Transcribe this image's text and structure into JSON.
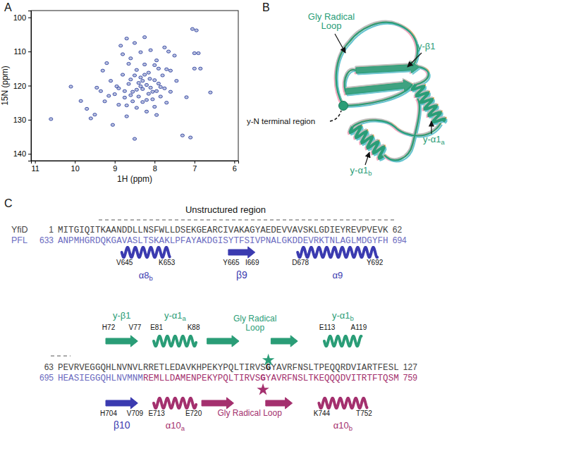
{
  "panel_labels": [
    "A",
    "B",
    "C"
  ],
  "chart_data": {
    "type": "scatter",
    "x_label": "1H (ppm)",
    "y_label": "15N (ppm)",
    "color": "#3d4fa6",
    "marker": "circle",
    "xlim": [
      11.1,
      5.9
    ],
    "xticks": [
      11,
      10,
      9,
      8,
      7,
      6
    ],
    "ylim": [
      98,
      142
    ],
    "yticks": [
      100,
      110,
      120,
      130,
      140
    ],
    "x": [
      10.6,
      10.1,
      9.85,
      9.7,
      9.6,
      9.5,
      9.45,
      9.35,
      9.3,
      9.25,
      9.2,
      9.1,
      9.05,
      9.0,
      8.95,
      8.9,
      8.85,
      8.8,
      8.75,
      8.7,
      8.7,
      8.65,
      8.6,
      8.55,
      8.5,
      8.5,
      8.45,
      8.45,
      8.4,
      8.4,
      8.35,
      8.35,
      8.3,
      8.3,
      8.25,
      8.25,
      8.2,
      8.2,
      8.15,
      8.15,
      8.1,
      8.1,
      8.05,
      8.0,
      8.0,
      7.95,
      7.95,
      7.9,
      7.9,
      7.85,
      7.8,
      7.75,
      7.75,
      7.7,
      7.7,
      7.65,
      7.6,
      7.6,
      7.5,
      7.45,
      7.3,
      7.2,
      7.1,
      7.05,
      7.0,
      7.0,
      6.95,
      6.9,
      6.85,
      6.6,
      8.9,
      8.6,
      8.55,
      8.3,
      8.25,
      8.45,
      8.75,
      8.05,
      8.12,
      8.35,
      8.6,
      8.0,
      7.85,
      9.15,
      8.65,
      8.2,
      8.5,
      8.7,
      7.95,
      8.8
    ],
    "values": [
      129.8,
      120.3,
      124.5,
      126.8,
      129.6,
      128.5,
      120.6,
      121.6,
      115.6,
      124.6,
      113.4,
      118.6,
      131.5,
      122.5,
      120.2,
      125.6,
      108.3,
      116.8,
      123.5,
      106.2,
      129.0,
      119.5,
      112.0,
      121.8,
      107.5,
      135.6,
      115.4,
      126.5,
      119.2,
      123.2,
      110.2,
      117.6,
      121.0,
      124.8,
      105.8,
      113.8,
      119.8,
      127.6,
      116.2,
      122.4,
      109.6,
      120.6,
      124.0,
      118.4,
      126.2,
      112.6,
      121.6,
      115.0,
      119.4,
      123.2,
      117.0,
      108.8,
      120.8,
      115.2,
      125.0,
      110.0,
      121.8,
      115.6,
      111.2,
      118.6,
      134.6,
      123.4,
      135.2,
      103.4,
      110.5,
      115.0,
      103.8,
      110.5,
      115.0,
      122.0,
      120.8,
      118.2,
      124.6,
      118.6,
      116.8,
      121.2,
      121.6,
      121.8,
      118.0,
      120.2,
      122.8,
      114.0,
      120.4,
      123.0,
      113.6,
      124.2,
      117.0,
      125.8,
      128.6,
      110.8
    ]
  },
  "structure": {
    "labels": [
      {
        "lines": [
          "Gly Radical",
          "Loop"
        ],
        "color": "#2a9d77"
      },
      {
        "text": "y-β1",
        "color": "#2a9d77"
      },
      {
        "text": "y-α1",
        "sub": "a",
        "color": "#2a9d77"
      },
      {
        "text": "y-α1",
        "sub": "b",
        "color": "#2a9d77"
      },
      {
        "text": "y-N terminal region",
        "color": "#111111"
      }
    ]
  },
  "alignment": {
    "region_label": "Unstructured region",
    "blocks": [
      {
        "rows": [
          {
            "name": "YfiD",
            "start": 1,
            "end": 62,
            "segments": [
              {
                "text": "MITGIQITKAANDDLLNSFWLLDSEKGEARCIVAKAGYAEDEVVAVSKLGDIEYREVPVEVK",
                "color": "#444444"
              }
            ]
          },
          {
            "name": "PFL",
            "start": 633,
            "end": 694,
            "segments": [
              {
                "text": "ANPMHGRDQKGAVASLTSKAKLPFAYAKDGISYTFSIVPNALGKDDEVRKTNLAGLMDGYFH",
                "color": "#6b6bc0"
              }
            ]
          }
        ],
        "above": [],
        "below": [
          {
            "kind": "helix",
            "name": "α8",
            "sub": "b",
            "from": "V645",
            "to": "K653",
            "color": "#3b3bb0"
          },
          {
            "kind": "strand",
            "name": "β9",
            "from": "Y665",
            "to": "I669",
            "color": "#3b3bb0"
          },
          {
            "kind": "helix",
            "name": "α9",
            "from": "D678",
            "to": "Y692",
            "color": "#3b3bb0"
          }
        ]
      },
      {
        "rows": [
          {
            "name": "",
            "start": 63,
            "end": 127,
            "segments": [
              {
                "text": "PEVRVEGGQHLNVNVLRRETLEDAVKHPEKYPQLTIRVS",
                "color": "#444444"
              },
              {
                "text": "G",
                "color": "#222222",
                "weight": "bold"
              },
              {
                "text": "YAVRFNSLTPEQQRDVIARTFESL",
                "color": "#444444"
              }
            ]
          },
          {
            "name": "",
            "start": 695,
            "end": 759,
            "segments": [
              {
                "text": "HEASIEGGQHLNVMNM",
                "color": "#6b6bc0"
              },
              {
                "text": "REMLLDAMENPEKYPQLTIRVS",
                "color": "#a4306e"
              },
              {
                "text": "G",
                "color": "#a4306e",
                "weight": "bold"
              },
              {
                "text": "YAVRFNSLTKEQQQDVITRTFTQSM",
                "color": "#a4306e"
              }
            ]
          }
        ],
        "above": [
          {
            "kind": "strand",
            "name": "y-β1",
            "from": "H72",
            "to": "V77",
            "color": "#2a9d77"
          },
          {
            "kind": "helix",
            "name": "y-α1",
            "sub": "a",
            "from": "E81",
            "to": "K88",
            "color": "#2a9d77"
          },
          {
            "kind": "loop",
            "lines": [
              "Gly Radical",
              "Loop"
            ],
            "color": "#2a9d77"
          },
          {
            "kind": "helix",
            "name": "y-α1",
            "sub": "b",
            "from": "E113",
            "to": "A119",
            "color": "#2a9d77"
          }
        ],
        "below": [
          {
            "kind": "strand",
            "name": "β10",
            "from": "H704",
            "to": "V709",
            "color": "#3b3bb0"
          },
          {
            "kind": "helix",
            "name": "α10",
            "sub": "a",
            "from": "E713",
            "to": "E720",
            "color": "#a4306e"
          },
          {
            "kind": "loop",
            "lines": [
              "Gly Radical Loop"
            ],
            "color": "#a4306e"
          },
          {
            "kind": "helix",
            "name": "α10",
            "sub": "b",
            "from": "K744",
            "to": "T752",
            "color": "#a4306e"
          }
        ]
      }
    ]
  }
}
